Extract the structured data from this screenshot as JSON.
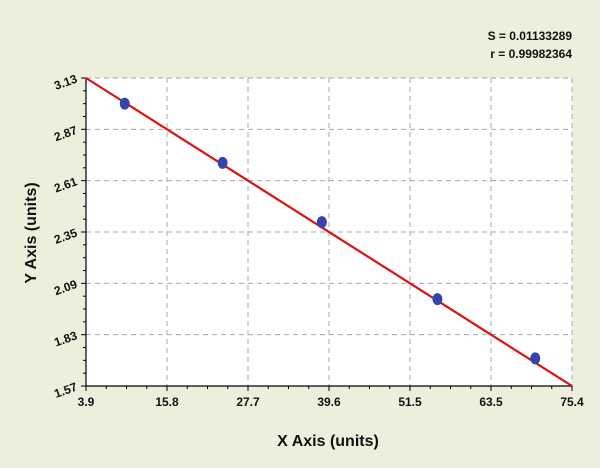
{
  "chart_data": {
    "type": "scatter",
    "xlabel": "X Axis (units)",
    "ylabel": "Y Axis (units)",
    "xlim": [
      3.9,
      75.4
    ],
    "ylim": [
      1.57,
      3.13
    ],
    "x_ticks": [
      "3.9",
      "15.8",
      "27.7",
      "39.6",
      "51.5",
      "63.5",
      "75.4"
    ],
    "y_ticks": [
      "1.57",
      "1.83",
      "2.09",
      "2.35",
      "2.61",
      "2.87",
      "3.13"
    ],
    "grid": true,
    "points": [
      {
        "x": 9.6,
        "y": 3.0
      },
      {
        "x": 24.0,
        "y": 2.7
      },
      {
        "x": 38.6,
        "y": 2.4
      },
      {
        "x": 55.6,
        "y": 2.01
      },
      {
        "x": 70.0,
        "y": 1.71
      }
    ],
    "fit_line": {
      "x": [
        3.9,
        75.4
      ],
      "y": [
        3.13,
        1.57
      ]
    },
    "stats": {
      "s_text": "S = 0.01133289",
      "r_text": "r = 0.99982364"
    },
    "colors": {
      "background": "#eeeedd",
      "points": "#3344aa",
      "line": "#dd1111",
      "grid": "#a8a8a8"
    }
  }
}
